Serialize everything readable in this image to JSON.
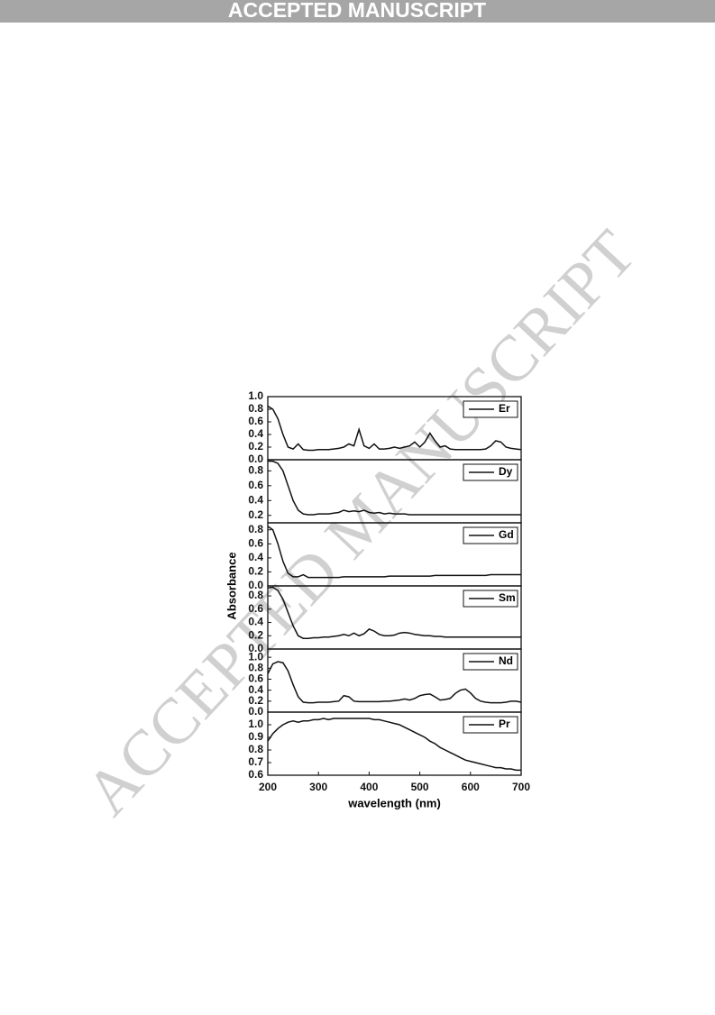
{
  "header": "ACCEPTED MANUSCRIPT",
  "watermark": "ACCEPTED MANUSCRIPT",
  "ylabel": "Absorbance",
  "chart_data": [
    {
      "type": "line",
      "xlim": [
        200,
        700
      ],
      "ylim": [
        0,
        1.0
      ],
      "legend": "upper right",
      "yticks": [
        {
          "value": 0,
          "label": "0.0"
        },
        0.2,
        0.4,
        0.6,
        0.8,
        {
          "value": 1,
          "label": "1.0"
        }
      ],
      "x": [
        200,
        210,
        220,
        230,
        240,
        250,
        260,
        270,
        280,
        290,
        300,
        310,
        320,
        330,
        340,
        350,
        360,
        370,
        380,
        390,
        400,
        410,
        420,
        430,
        440,
        450,
        460,
        470,
        480,
        490,
        500,
        510,
        520,
        530,
        540,
        550,
        560,
        570,
        580,
        590,
        600,
        610,
        620,
        630,
        640,
        650,
        660,
        670,
        680,
        690,
        700
      ],
      "series": [
        {
          "name": "Er",
          "color": "#111111",
          "values": [
            0.85,
            0.8,
            0.65,
            0.4,
            0.2,
            0.17,
            0.25,
            0.16,
            0.15,
            0.15,
            0.16,
            0.16,
            0.16,
            0.17,
            0.18,
            0.2,
            0.25,
            0.22,
            0.48,
            0.22,
            0.18,
            0.25,
            0.17,
            0.17,
            0.18,
            0.2,
            0.18,
            0.2,
            0.22,
            0.28,
            0.2,
            0.28,
            0.42,
            0.3,
            0.2,
            0.22,
            0.17,
            0.16,
            0.16,
            0.16,
            0.16,
            0.16,
            0.16,
            0.17,
            0.22,
            0.3,
            0.28,
            0.2,
            0.18,
            0.17,
            0.16
          ]
        }
      ]
    },
    {
      "type": "line",
      "xlim": [
        200,
        700
      ],
      "ylim": [
        0.1,
        0.95
      ],
      "legend": "upper right",
      "yticks": [
        0.2,
        0.4,
        0.6,
        0.8
      ],
      "x": [
        200,
        210,
        220,
        230,
        240,
        250,
        260,
        270,
        280,
        290,
        300,
        310,
        320,
        330,
        340,
        350,
        360,
        370,
        380,
        390,
        400,
        410,
        420,
        430,
        440,
        450,
        460,
        470,
        480,
        490,
        500,
        510,
        520,
        530,
        540,
        550,
        560,
        570,
        580,
        590,
        600,
        610,
        620,
        630,
        640,
        650,
        660,
        670,
        680,
        690,
        700
      ],
      "series": [
        {
          "name": "Dy",
          "color": "#111111",
          "values": [
            0.93,
            0.93,
            0.9,
            0.8,
            0.6,
            0.4,
            0.27,
            0.22,
            0.21,
            0.21,
            0.22,
            0.22,
            0.22,
            0.23,
            0.24,
            0.27,
            0.25,
            0.26,
            0.25,
            0.27,
            0.24,
            0.23,
            0.24,
            0.22,
            0.23,
            0.22,
            0.22,
            0.22,
            0.21,
            0.21,
            0.21,
            0.21,
            0.21,
            0.21,
            0.21,
            0.21,
            0.21,
            0.21,
            0.21,
            0.21,
            0.21,
            0.21,
            0.21,
            0.21,
            0.21,
            0.21,
            0.21,
            0.21,
            0.21,
            0.21,
            0.21
          ]
        }
      ]
    },
    {
      "type": "line",
      "xlim": [
        200,
        700
      ],
      "ylim": [
        0,
        0.9
      ],
      "legend": "upper right",
      "yticks": [
        {
          "value": 0,
          "label": "0.0"
        },
        0.2,
        0.4,
        0.6,
        0.8
      ],
      "x": [
        200,
        210,
        220,
        230,
        240,
        250,
        260,
        270,
        280,
        290,
        300,
        310,
        320,
        330,
        340,
        350,
        360,
        370,
        380,
        390,
        400,
        410,
        420,
        430,
        440,
        450,
        460,
        470,
        480,
        490,
        500,
        510,
        520,
        530,
        540,
        550,
        560,
        570,
        580,
        590,
        600,
        610,
        620,
        630,
        640,
        650,
        660,
        670,
        680,
        690,
        700
      ],
      "series": [
        {
          "name": "Gd",
          "color": "#111111",
          "values": [
            0.85,
            0.8,
            0.6,
            0.35,
            0.18,
            0.13,
            0.13,
            0.16,
            0.12,
            0.12,
            0.12,
            0.12,
            0.12,
            0.12,
            0.12,
            0.13,
            0.13,
            0.13,
            0.13,
            0.13,
            0.13,
            0.13,
            0.13,
            0.13,
            0.14,
            0.14,
            0.14,
            0.14,
            0.14,
            0.14,
            0.14,
            0.14,
            0.14,
            0.15,
            0.15,
            0.15,
            0.15,
            0.15,
            0.15,
            0.15,
            0.15,
            0.15,
            0.15,
            0.15,
            0.16,
            0.16,
            0.16,
            0.16,
            0.16,
            0.16,
            0.16
          ]
        }
      ]
    },
    {
      "type": "line",
      "xlim": [
        200,
        700
      ],
      "ylim": [
        0,
        0.95
      ],
      "legend": "upper right",
      "yticks": [
        {
          "value": 0,
          "label": "0.0"
        },
        0.2,
        0.4,
        0.6,
        0.8
      ],
      "x": [
        200,
        210,
        220,
        230,
        240,
        250,
        260,
        270,
        280,
        290,
        300,
        310,
        320,
        330,
        340,
        350,
        360,
        370,
        380,
        390,
        400,
        410,
        420,
        430,
        440,
        450,
        460,
        470,
        480,
        490,
        500,
        510,
        520,
        530,
        540,
        550,
        560,
        570,
        580,
        590,
        600,
        610,
        620,
        630,
        640,
        650,
        660,
        670,
        680,
        690,
        700
      ],
      "series": [
        {
          "name": "Sm",
          "color": "#111111",
          "values": [
            0.92,
            0.93,
            0.88,
            0.75,
            0.55,
            0.35,
            0.2,
            0.16,
            0.16,
            0.17,
            0.17,
            0.18,
            0.18,
            0.19,
            0.2,
            0.22,
            0.2,
            0.24,
            0.2,
            0.23,
            0.3,
            0.27,
            0.22,
            0.2,
            0.2,
            0.21,
            0.24,
            0.25,
            0.24,
            0.22,
            0.21,
            0.2,
            0.2,
            0.19,
            0.19,
            0.18,
            0.18,
            0.18,
            0.18,
            0.18,
            0.18,
            0.18,
            0.18,
            0.18,
            0.18,
            0.18,
            0.18,
            0.18,
            0.18,
            0.18,
            0.18
          ]
        }
      ]
    },
    {
      "type": "line",
      "xlim": [
        200,
        700
      ],
      "ylim": [
        0,
        1.15
      ],
      "legend": "upper right",
      "yticks": [
        {
          "value": 0,
          "label": "0.0"
        },
        0.2,
        0.4,
        0.6,
        0.8,
        {
          "value": 1,
          "label": "1.0"
        }
      ],
      "x": [
        200,
        210,
        220,
        230,
        240,
        250,
        260,
        270,
        280,
        290,
        300,
        310,
        320,
        330,
        340,
        350,
        360,
        370,
        380,
        390,
        400,
        410,
        420,
        430,
        440,
        450,
        460,
        470,
        480,
        490,
        500,
        510,
        520,
        530,
        540,
        550,
        560,
        570,
        580,
        590,
        600,
        610,
        620,
        630,
        640,
        650,
        660,
        670,
        680,
        690,
        700
      ],
      "series": [
        {
          "name": "Nd",
          "color": "#111111",
          "values": [
            0.7,
            0.88,
            0.92,
            0.9,
            0.75,
            0.5,
            0.28,
            0.18,
            0.17,
            0.17,
            0.18,
            0.18,
            0.18,
            0.19,
            0.2,
            0.3,
            0.28,
            0.2,
            0.19,
            0.19,
            0.19,
            0.19,
            0.19,
            0.2,
            0.2,
            0.21,
            0.22,
            0.24,
            0.22,
            0.25,
            0.3,
            0.32,
            0.33,
            0.28,
            0.22,
            0.23,
            0.25,
            0.34,
            0.4,
            0.42,
            0.35,
            0.25,
            0.2,
            0.18,
            0.17,
            0.17,
            0.17,
            0.18,
            0.2,
            0.2,
            0.18
          ]
        }
      ]
    },
    {
      "type": "line",
      "xlim": [
        200,
        700
      ],
      "ylim": [
        0.6,
        1.1
      ],
      "legend": "upper right",
      "yticks": [
        0.6,
        0.7,
        0.8,
        0.9,
        {
          "value": 1,
          "label": "1.0"
        }
      ],
      "xticks": [
        200,
        300,
        400,
        500,
        600,
        700
      ],
      "xlabel": "wavelength (nm)",
      "x": [
        200,
        210,
        220,
        230,
        240,
        250,
        260,
        270,
        280,
        290,
        300,
        310,
        320,
        330,
        340,
        350,
        360,
        370,
        380,
        390,
        400,
        410,
        420,
        430,
        440,
        450,
        460,
        470,
        480,
        490,
        500,
        510,
        520,
        530,
        540,
        550,
        560,
        570,
        580,
        590,
        600,
        610,
        620,
        630,
        640,
        650,
        660,
        670,
        680,
        690,
        700
      ],
      "series": [
        {
          "name": "Pr",
          "color": "#111111",
          "values": [
            0.87,
            0.93,
            0.97,
            1.0,
            1.02,
            1.03,
            1.02,
            1.03,
            1.03,
            1.04,
            1.04,
            1.05,
            1.04,
            1.05,
            1.05,
            1.05,
            1.05,
            1.05,
            1.05,
            1.05,
            1.05,
            1.04,
            1.04,
            1.03,
            1.02,
            1.01,
            1.0,
            0.98,
            0.96,
            0.94,
            0.92,
            0.9,
            0.87,
            0.85,
            0.82,
            0.8,
            0.78,
            0.76,
            0.74,
            0.72,
            0.71,
            0.7,
            0.69,
            0.68,
            0.67,
            0.66,
            0.66,
            0.65,
            0.65,
            0.64,
            0.64
          ]
        }
      ]
    }
  ]
}
